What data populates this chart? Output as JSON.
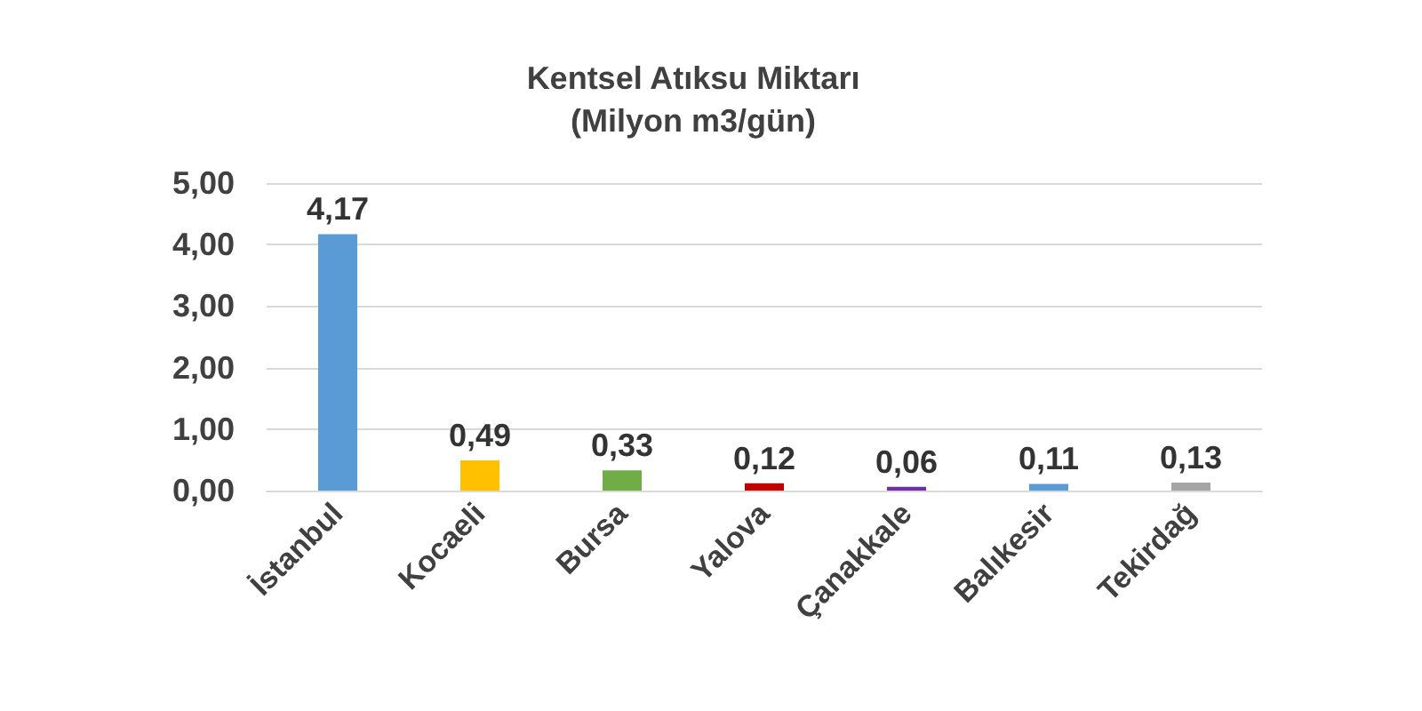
{
  "chart_data": {
    "type": "bar",
    "title": "Kentsel Atıksu Miktarı",
    "subtitle": "(Milyon m3/gün)",
    "categories": [
      "İstanbul",
      "Kocaeli",
      "Bursa",
      "Yalova",
      "Çanakkale",
      "Balıkesir",
      "Tekirdağ"
    ],
    "values": [
      4.17,
      0.49,
      0.33,
      0.12,
      0.06,
      0.11,
      0.13
    ],
    "colors": [
      "#5b9bd5",
      "#ffc000",
      "#70ad47",
      "#c00000",
      "#7030a0",
      "#5b9bd5",
      "#a5a5a5"
    ],
    "value_labels": [
      "4,17",
      "0,49",
      "0,33",
      "0,12",
      "0,06",
      "0,11",
      "0,13"
    ],
    "ylim": [
      0,
      5
    ],
    "yticks": [
      {
        "value": 0,
        "label": "0,00"
      },
      {
        "value": 1,
        "label": "1,00"
      },
      {
        "value": 2,
        "label": "2,00"
      },
      {
        "value": 3,
        "label": "3,00"
      },
      {
        "value": 4,
        "label": "4,00"
      },
      {
        "value": 5,
        "label": "5,00"
      }
    ],
    "grid": "y"
  }
}
